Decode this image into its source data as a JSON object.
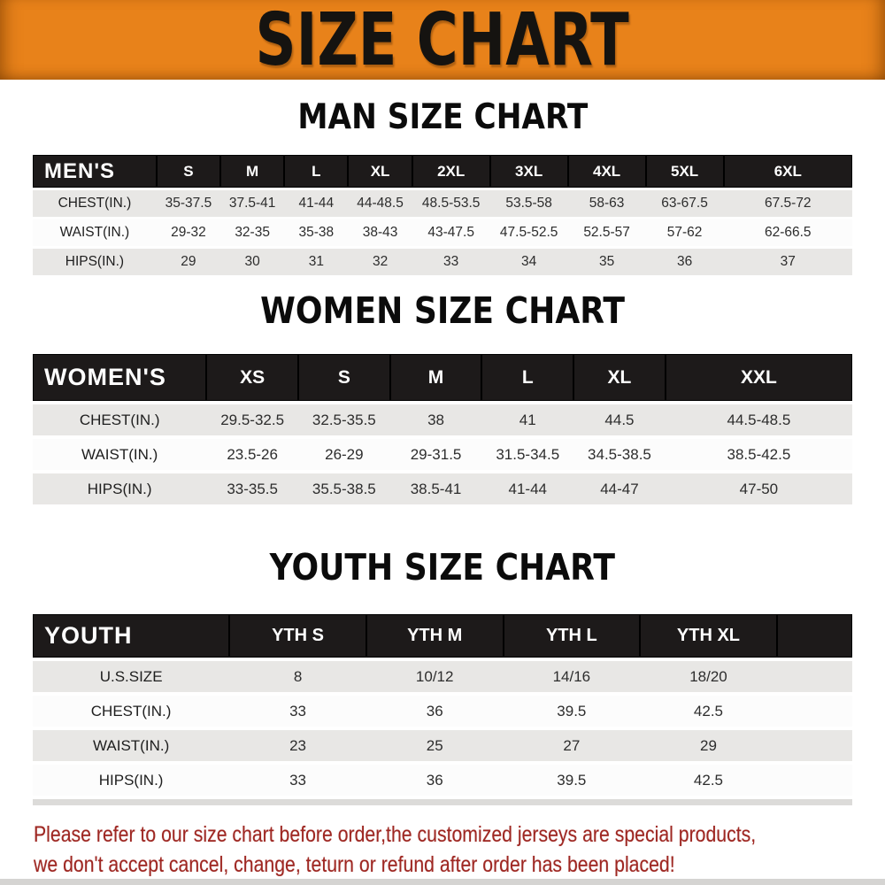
{
  "banner": {
    "title": "SIZE CHART"
  },
  "sections": [
    {
      "heading": "MAN SIZE CHART",
      "header_label": "MEN'S",
      "columns": [
        "S",
        "M",
        "L",
        "XL",
        "2XL",
        "3XL",
        "4XL",
        "5XL",
        "6XL"
      ],
      "rows": [
        {
          "label": "CHEST(IN.)",
          "values": [
            "35-37.5",
            "37.5-41",
            "41-44",
            "44-48.5",
            "48.5-53.5",
            "53.5-58",
            "58-63",
            "63-67.5",
            "67.5-72"
          ]
        },
        {
          "label": "WAIST(IN.)",
          "values": [
            "29-32",
            "32-35",
            "35-38",
            "38-43",
            "43-47.5",
            "47.5-52.5",
            "52.5-57",
            "57-62",
            "62-66.5"
          ]
        },
        {
          "label": "HIPS(IN.)",
          "values": [
            "29",
            "30",
            "31",
            "32",
            "33",
            "34",
            "35",
            "36",
            "37"
          ]
        }
      ]
    },
    {
      "heading": "WOMEN SIZE CHART",
      "header_label": "WOMEN'S",
      "columns": [
        "XS",
        "S",
        "M",
        "L",
        "XL",
        "XXL"
      ],
      "rows": [
        {
          "label": "CHEST(IN.)",
          "values": [
            "29.5-32.5",
            "32.5-35.5",
            "38",
            "41",
            "44.5",
            "44.5-48.5"
          ]
        },
        {
          "label": "WAIST(IN.)",
          "values": [
            "23.5-26",
            "26-29",
            "29-31.5",
            "31.5-34.5",
            "34.5-38.5",
            "38.5-42.5"
          ]
        },
        {
          "label": "HIPS(IN.)",
          "values": [
            "33-35.5",
            "35.5-38.5",
            "38.5-41",
            "41-44",
            "44-47",
            "47-50"
          ]
        }
      ]
    },
    {
      "heading": "YOUTH SIZE CHART",
      "header_label": "YOUTH",
      "columns": [
        "YTH S",
        "YTH M",
        "YTH L",
        "YTH XL"
      ],
      "rows": [
        {
          "label": "U.S.SIZE",
          "values": [
            "8",
            "10/12",
            "14/16",
            "18/20"
          ]
        },
        {
          "label": "CHEST(IN.)",
          "values": [
            "33",
            "36",
            "39.5",
            "42.5"
          ]
        },
        {
          "label": "WAIST(IN.)",
          "values": [
            "23",
            "25",
            "27",
            "29"
          ]
        },
        {
          "label": "HIPS(IN.)",
          "values": [
            "33",
            "36",
            "39.5",
            "42.5"
          ]
        }
      ]
    }
  ],
  "footer": {
    "line1": "Please refer to our size chart before order,the customized jerseys are special products,",
    "line2": "we don't accept cancel, change, teturn or refund after order has been placed!"
  },
  "colors": {
    "banner_bg": "#E8821A",
    "header_bg": "#1D1A1A",
    "row_gray": "#E8E7E5",
    "row_white": "#FCFCFC",
    "footer_text": "#9E2722"
  }
}
